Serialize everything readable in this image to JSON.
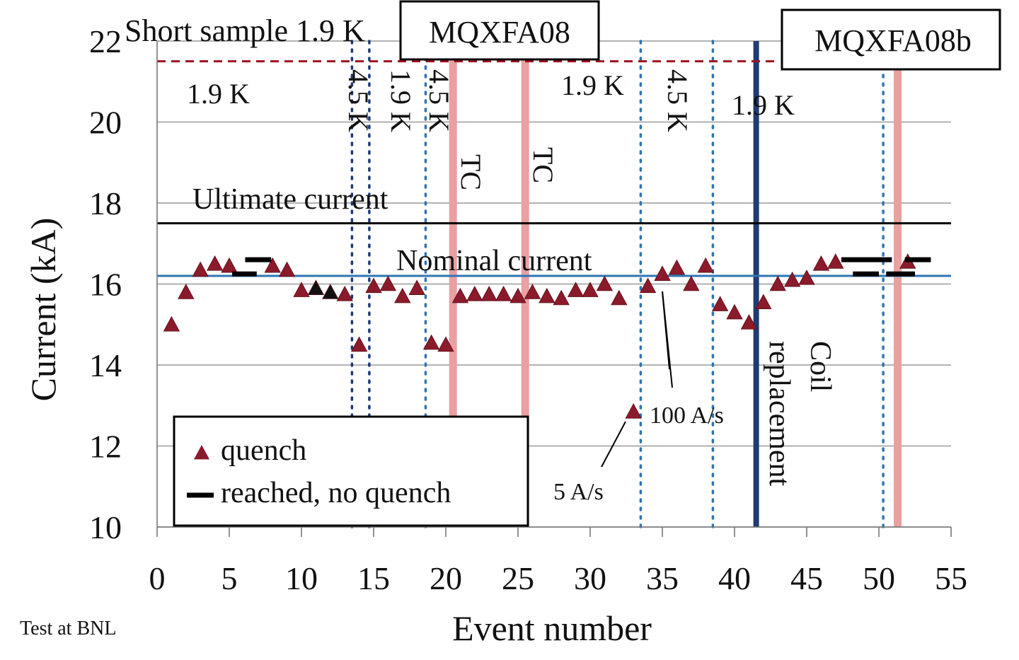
{
  "chart_data": {
    "type": "scatter",
    "title": "",
    "xlabel": "Event number",
    "ylabel": "Current (kA)",
    "xlim": [
      0,
      55
    ],
    "ylim": [
      10,
      22
    ],
    "xticks": [
      0,
      5,
      10,
      15,
      20,
      25,
      30,
      35,
      40,
      45,
      50,
      55
    ],
    "yticks": [
      10,
      12,
      14,
      16,
      18,
      20,
      22
    ],
    "grid": "horizontal",
    "legend_position": "bottom-left",
    "legend": [
      {
        "label": "quench",
        "marker": "triangle",
        "color": "#8b1a2b"
      },
      {
        "label": "reached, no quench",
        "marker": "dash",
        "color": "#000000"
      }
    ],
    "series": [
      {
        "name": "quench",
        "color": "#8b1a2b",
        "x": [
          1,
          2,
          3,
          4,
          5,
          8,
          9,
          10,
          13,
          14,
          15,
          16,
          17,
          18,
          19,
          20,
          21,
          22,
          23,
          24,
          25,
          26,
          27,
          28,
          29,
          30,
          31,
          32,
          33,
          34,
          35,
          36,
          37,
          38,
          39,
          40,
          41,
          42,
          43,
          44,
          45,
          46,
          47,
          52
        ],
        "y": [
          15.0,
          15.8,
          16.35,
          16.5,
          16.45,
          16.45,
          16.35,
          15.85,
          15.75,
          14.5,
          15.95,
          16.0,
          15.7,
          15.9,
          14.55,
          14.5,
          15.7,
          15.75,
          15.75,
          15.75,
          15.7,
          15.8,
          15.7,
          15.65,
          15.85,
          15.85,
          16.0,
          15.65,
          12.85,
          15.95,
          16.25,
          16.4,
          16.0,
          16.45,
          15.5,
          15.3,
          15.05,
          15.55,
          16.0,
          16.1,
          16.15,
          16.5,
          16.55,
          16.55
        ]
      },
      {
        "name": "quench-black",
        "color": "#111111",
        "x": [
          11,
          12
        ],
        "y": [
          15.9,
          15.8
        ]
      },
      {
        "name": "reached, no quench",
        "color": "#000000",
        "segments": [
          {
            "x": [
              5.2,
              6.9
            ],
            "y": 16.25
          },
          {
            "x": [
              6.1,
              7.9
            ],
            "y": 16.6
          },
          {
            "x": [
              47.4,
              50.9
            ],
            "y": 16.6
          },
          {
            "x": [
              48.2,
              50.0
            ],
            "y": 16.25
          },
          {
            "x": [
              50.5,
              52.5
            ],
            "y": 16.25
          },
          {
            "x": [
              51.8,
              53.6
            ],
            "y": 16.6
          }
        ]
      }
    ],
    "reference_lines": [
      {
        "label": "Short sample 1.9 K",
        "y": 21.5,
        "color": "#a01020",
        "style": "dashed"
      },
      {
        "label": "Ultimate  current",
        "y": 17.5,
        "color": "#000000",
        "style": "solid"
      },
      {
        "label": "Nominal  current",
        "y": 16.2,
        "color": "#2e75b6",
        "style": "solid"
      }
    ],
    "vertical_lines": [
      {
        "x": 13.5,
        "color": "#1f3b70",
        "style": "dotted"
      },
      {
        "x": 14.7,
        "color": "#1f3b70",
        "style": "dotted"
      },
      {
        "x": 18.6,
        "color": "#2e75b6",
        "style": "dotted"
      },
      {
        "x": 20.5,
        "color": "#e8a0a0",
        "style": "solid"
      },
      {
        "x": 25.5,
        "color": "#e8a0a0",
        "style": "solid"
      },
      {
        "x": 33.5,
        "color": "#2e75b6",
        "style": "dotted"
      },
      {
        "x": 38.5,
        "color": "#2e75b6",
        "style": "dotted"
      },
      {
        "x": 41.5,
        "color": "#1f3b70",
        "style": "solid"
      },
      {
        "x": 50.3,
        "color": "#2e75b6",
        "style": "dotted"
      },
      {
        "x": 51.3,
        "color": "#e8a0a0",
        "style": "solid"
      }
    ],
    "annotations": {
      "short_sample": "Short sample 1.9 K",
      "ultimate": "Ultimate  current",
      "nominal": "Nominal  current",
      "box_a": "MQXFA08",
      "box_b": "MQXFA08b",
      "t_19_a": "1.9 K",
      "t_45_a": "4.5 K",
      "t_19_b": "1.9 K",
      "t_45_b": "4.5 K",
      "t_19_c": "1.9 K",
      "t_45_c": "4.5 K",
      "t_19_d": "1.9 K",
      "tc_a": "TC",
      "tc_b": "TC",
      "coil_1": "Coil",
      "coil_2": "replacement",
      "rate_100": "100 A/s",
      "rate_5": "5 A/s",
      "credit": "Test at BNL"
    }
  }
}
